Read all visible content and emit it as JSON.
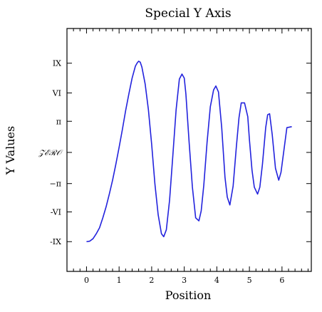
{
  "chart_data": {
    "type": "line",
    "title": "Special Y Axis",
    "xlabel": "Position",
    "ylabel": "Y Values",
    "xlim": [
      -0.6,
      6.9
    ],
    "ylim": [
      -12.0,
      12.5
    ],
    "grid": false,
    "x_ticks": [
      {
        "value": 0,
        "label": "0"
      },
      {
        "value": 1,
        "label": "1"
      },
      {
        "value": 2,
        "label": "2"
      },
      {
        "value": 3,
        "label": "3"
      },
      {
        "value": 4,
        "label": "4"
      },
      {
        "value": 5,
        "label": "5"
      },
      {
        "value": 6,
        "label": "6"
      }
    ],
    "y_ticks": [
      {
        "value": -9,
        "label": "-IX"
      },
      {
        "value": -6,
        "label": "-VI"
      },
      {
        "value": -3.14159,
        "label": "−π"
      },
      {
        "value": 0,
        "label": "𝒵ℰℛ𝒪"
      },
      {
        "value": 3.14159,
        "label": "π"
      },
      {
        "value": 6,
        "label": "VI"
      },
      {
        "value": 9,
        "label": "IX"
      }
    ],
    "series": [
      {
        "color": "#2222dd",
        "x": [
          0.0,
          0.1,
          0.2,
          0.3,
          0.4,
          0.5,
          0.6,
          0.7,
          0.8,
          0.9,
          1.0,
          1.1,
          1.2,
          1.3,
          1.4,
          1.5,
          1.55,
          1.6,
          1.65,
          1.7,
          1.8,
          1.9,
          2.0,
          2.1,
          2.2,
          2.3,
          2.37,
          2.45,
          2.55,
          2.65,
          2.75,
          2.85,
          2.93,
          3.0,
          3.05,
          3.15,
          3.25,
          3.35,
          3.45,
          3.52,
          3.6,
          3.7,
          3.8,
          3.9,
          3.97,
          4.05,
          4.15,
          4.25,
          4.32,
          4.4,
          4.5,
          4.6,
          4.68,
          4.75,
          4.85,
          4.95,
          5.0,
          5.08,
          5.15,
          5.25,
          5.32,
          5.4,
          5.5,
          5.56,
          5.62,
          5.7,
          5.8,
          5.9,
          5.97,
          6.05,
          6.15,
          6.3
        ],
        "y": [
          -9.0,
          -8.95,
          -8.7,
          -8.2,
          -7.6,
          -6.6,
          -5.5,
          -4.2,
          -2.8,
          -1.2,
          0.5,
          2.3,
          4.2,
          5.9,
          7.5,
          8.7,
          9.0,
          9.2,
          9.1,
          8.6,
          6.9,
          4.3,
          0.8,
          -3.2,
          -6.3,
          -8.2,
          -8.5,
          -7.8,
          -4.8,
          -0.3,
          4.3,
          7.4,
          7.9,
          7.5,
          5.9,
          1.0,
          -3.5,
          -6.6,
          -6.9,
          -5.9,
          -3.3,
          1.0,
          4.6,
          6.3,
          6.7,
          6.1,
          2.5,
          -2.5,
          -4.5,
          -5.3,
          -3.4,
          0.6,
          3.5,
          5.0,
          5.0,
          3.6,
          1.3,
          -1.8,
          -3.5,
          -4.2,
          -3.5,
          -1.2,
          2.5,
          3.8,
          3.9,
          1.8,
          -1.6,
          -2.8,
          -2.0,
          0.0,
          2.5,
          2.6
        ]
      }
    ]
  }
}
